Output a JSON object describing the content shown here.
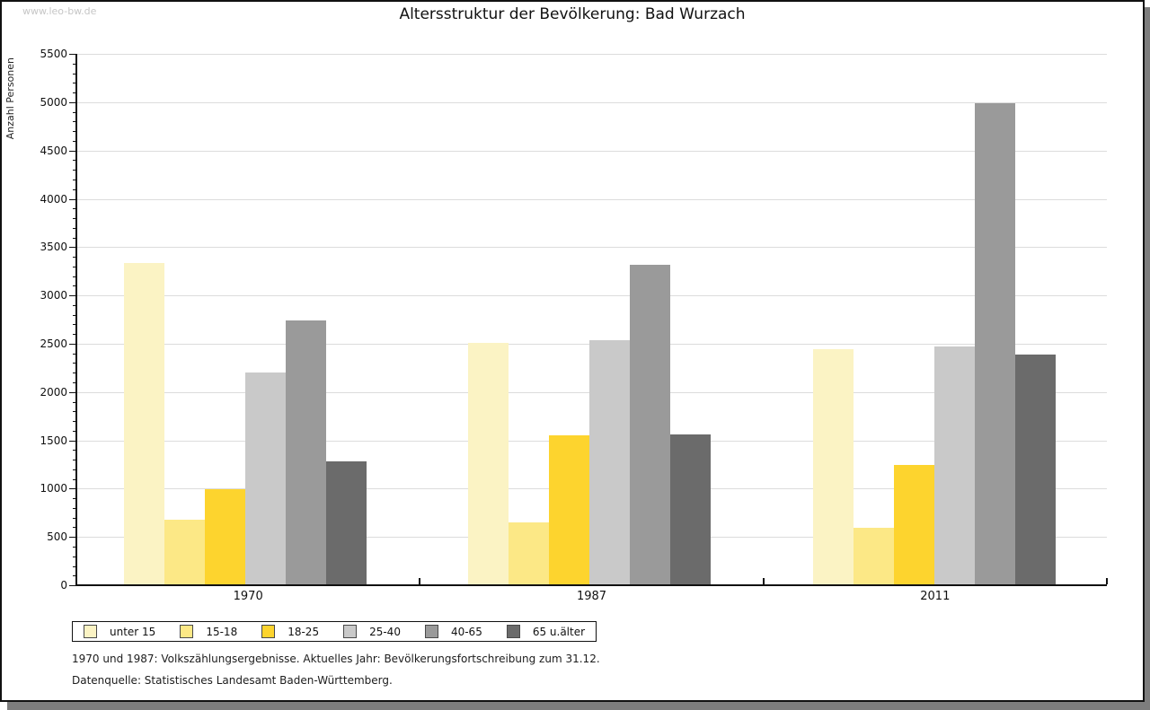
{
  "watermark": "www.leo-bw.de",
  "chart_data": {
    "type": "bar",
    "title": "Altersstruktur der Bevölkerung: Bad Wurzach",
    "xlabel": "",
    "ylabel": "Anzahl Personen",
    "ylim": [
      0,
      5500
    ],
    "ytick_step": 500,
    "y_minor_tick_step": 100,
    "grid": true,
    "legend_position": "bottom-left",
    "categories": [
      "1970",
      "1987",
      "2011"
    ],
    "series": [
      {
        "name": "unter 15",
        "color": "#fbf3c4",
        "values": [
          3340,
          2510,
          2440
        ]
      },
      {
        "name": "15-18",
        "color": "#fce886",
        "values": [
          680,
          655,
          595
        ]
      },
      {
        "name": "18-25",
        "color": "#fdd42e",
        "values": [
          995,
          1550,
          1245
        ]
      },
      {
        "name": "25-40",
        "color": "#c9c9c9",
        "values": [
          2205,
          2540,
          2470
        ]
      },
      {
        "name": "40-65",
        "color": "#9a9a9a",
        "values": [
          2745,
          3320,
          4990
        ]
      },
      {
        "name": "65 u.älter",
        "color": "#6b6b6b",
        "values": [
          1280,
          1565,
          2385
        ]
      }
    ]
  },
  "footnotes": [
    "1970 und 1987: Volkszählungsergebnisse. Aktuelles Jahr: Bevölkerungsfortschreibung zum 31.12.",
    "Datenquelle: Statistisches Landesamt Baden-Württemberg."
  ]
}
